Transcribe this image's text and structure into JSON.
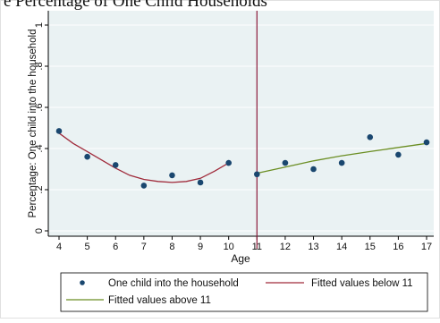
{
  "heading_fragment": "e Percentage of One Child Households",
  "chart_data": {
    "type": "scatter",
    "xlabel": "Age",
    "ylabel": "Percentage: One child into the household",
    "xlim": [
      4,
      17
    ],
    "ylim": [
      0,
      1
    ],
    "x_ticks": [
      4,
      5,
      6,
      7,
      8,
      9,
      10,
      11,
      12,
      13,
      14,
      15,
      16,
      17
    ],
    "x_tick_labels": [
      "4",
      "5",
      "6",
      "7",
      "8",
      "9",
      "10",
      "11",
      "12",
      "13",
      "14",
      "15",
      "16",
      "17"
    ],
    "y_ticks": [
      0,
      0.2,
      0.4,
      0.6,
      0.8,
      1
    ],
    "y_tick_labels": [
      "0",
      ".2",
      ".4",
      ".6",
      ".8",
      "1"
    ],
    "grid": "horizontal",
    "background": "#eaf2f3",
    "cutoff": {
      "x": 11,
      "color": "#8b1a3a"
    },
    "points": {
      "name": "One child into the household",
      "color": "#1a476f",
      "x": [
        4,
        5,
        6,
        7,
        8,
        9,
        10,
        11,
        12,
        13,
        14,
        15,
        16,
        17
      ],
      "y": [
        0.485,
        0.36,
        0.32,
        0.22,
        0.27,
        0.235,
        0.33,
        0.275,
        0.33,
        0.3,
        0.33,
        0.455,
        0.37,
        0.43
      ]
    },
    "fit_below": {
      "name": "Fitted values below 11",
      "color": "#a02b3b",
      "x": [
        4,
        4.5,
        5,
        5.5,
        6,
        6.5,
        7,
        7.5,
        8,
        8.5,
        9,
        9.5,
        10
      ],
      "y": [
        0.475,
        0.425,
        0.385,
        0.345,
        0.305,
        0.27,
        0.25,
        0.24,
        0.235,
        0.24,
        0.255,
        0.29,
        0.33
      ]
    },
    "fit_above": {
      "name": "Fitted values above 11",
      "color": "#6b8e23",
      "x": [
        11,
        12,
        13,
        14,
        15,
        16,
        17
      ],
      "y": [
        0.28,
        0.31,
        0.34,
        0.365,
        0.385,
        0.405,
        0.425
      ]
    },
    "legend": {
      "placement": "bottom",
      "items": [
        "One child into the household",
        "Fitted values below 11",
        "Fitted values above 11"
      ]
    }
  }
}
